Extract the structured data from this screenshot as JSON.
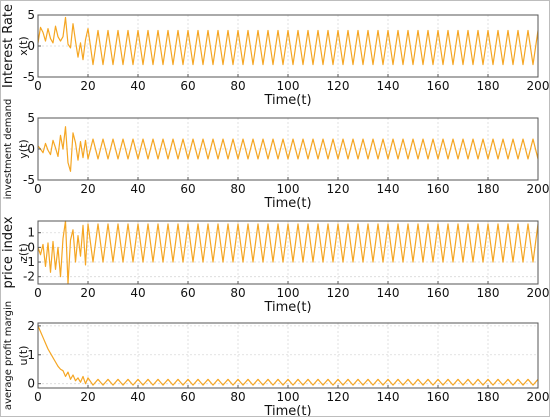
{
  "colors": {
    "series": "#F5A623",
    "axis": "#555555",
    "grid": "#d9d9d9",
    "text": "#111111"
  },
  "chart_data": [
    {
      "type": "line",
      "ylabel": "Interest Rate",
      "sublabel": "x(t)",
      "xlabel": "Time(t)",
      "xlim": [
        0,
        200
      ],
      "ylim": [
        -5,
        5
      ],
      "xticks": [
        "0",
        "20",
        "40",
        "60",
        "80",
        "100",
        "120",
        "140",
        "160",
        "180",
        "200"
      ],
      "yticks": [
        "-5",
        "0",
        "5"
      ],
      "grid": true,
      "series": [
        {
          "x": [
            0,
            1,
            2,
            3,
            4,
            5,
            6,
            7,
            8,
            9,
            10,
            11,
            12,
            13,
            14,
            15,
            16,
            17,
            18,
            19,
            20,
            22,
            24,
            26,
            28,
            30,
            32,
            34,
            36,
            38,
            40,
            42,
            44,
            46,
            48,
            50,
            52,
            54,
            56,
            58,
            60,
            62,
            64,
            66,
            68,
            70,
            72,
            74,
            76,
            78,
            80,
            82,
            84,
            86,
            88,
            90,
            92,
            94,
            96,
            98,
            100,
            102,
            104,
            106,
            108,
            110,
            112,
            114,
            116,
            118,
            120,
            122,
            124,
            126,
            128,
            130,
            132,
            134,
            136,
            138,
            140,
            142,
            144,
            146,
            148,
            150,
            152,
            154,
            156,
            158,
            160,
            162,
            164,
            166,
            168,
            170,
            172,
            174,
            176,
            178,
            180,
            182,
            184,
            186,
            188,
            190,
            192,
            194,
            196,
            198,
            200
          ],
          "values": [
            0.5,
            3.0,
            2.2,
            0.8,
            2.8,
            1.2,
            0.5,
            3.2,
            1.5,
            0.8,
            1.5,
            4.6,
            0.3,
            -0.3,
            3.6,
            0.8,
            -1.8,
            0.5,
            -2.2,
            1.0,
            2.8,
            -3.0,
            2.5,
            -3.0,
            2.5,
            -3.0,
            2.5,
            -3.0,
            2.5,
            -3.0,
            2.5,
            -3.0,
            2.5,
            -3.0,
            2.5,
            -3.0,
            2.5,
            -3.0,
            2.5,
            -3.0,
            2.5,
            -3.0,
            2.5,
            -3.0,
            2.5,
            -3.0,
            2.5,
            -3.0,
            2.5,
            -3.0,
            2.5,
            -3.0,
            2.5,
            -3.0,
            2.5,
            -3.0,
            2.5,
            -3.0,
            2.5,
            -3.0,
            2.5,
            -3.0,
            2.5,
            -3.0,
            2.5,
            -3.0,
            2.5,
            -3.0,
            2.5,
            -3.0,
            2.5,
            -3.0,
            2.5,
            -3.0,
            2.5,
            -3.0,
            2.5,
            -3.0,
            2.5,
            -3.0,
            2.5,
            -3.0,
            2.5,
            -3.0,
            2.5,
            -3.0,
            2.5,
            -3.0,
            2.5,
            -3.0,
            2.5,
            -3.0,
            2.5,
            -3.0,
            2.5,
            -3.0,
            2.5,
            -3.0,
            2.5,
            -3.0,
            2.5,
            -3.0,
            2.5,
            -3.0,
            2.5,
            -3.0,
            2.5,
            -3.0,
            2.5,
            -3.0,
            2.5
          ]
        }
      ]
    },
    {
      "type": "line",
      "ylabel": "investment demand",
      "sublabel": "y(t)",
      "xlabel": "Time(t)",
      "xlim": [
        0,
        200
      ],
      "ylim": [
        -5,
        5
      ],
      "xticks": [
        "0",
        "20",
        "40",
        "60",
        "80",
        "100",
        "120",
        "140",
        "160",
        "180",
        "200"
      ],
      "yticks": [
        "-5",
        "0",
        "5"
      ],
      "grid": true,
      "series": [
        {
          "x": [
            0,
            1,
            2,
            3,
            4,
            5,
            6,
            7,
            8,
            9,
            10,
            11,
            12,
            13,
            14,
            15,
            16,
            17,
            18,
            19,
            20,
            22,
            24,
            26,
            28,
            30,
            32,
            34,
            36,
            38,
            40,
            42,
            44,
            46,
            48,
            50,
            52,
            54,
            56,
            58,
            60,
            62,
            64,
            66,
            68,
            70,
            72,
            74,
            76,
            78,
            80,
            82,
            84,
            86,
            88,
            90,
            92,
            94,
            96,
            98,
            100,
            102,
            104,
            106,
            108,
            110,
            112,
            114,
            116,
            118,
            120,
            122,
            124,
            126,
            128,
            130,
            132,
            134,
            136,
            138,
            140,
            142,
            144,
            146,
            148,
            150,
            152,
            154,
            156,
            158,
            160,
            162,
            164,
            166,
            168,
            170,
            172,
            174,
            176,
            178,
            180,
            182,
            184,
            186,
            188,
            190,
            192,
            194,
            196,
            198,
            200
          ],
          "values": [
            0.5,
            0.0,
            -0.6,
            0.9,
            -0.2,
            -0.9,
            1.4,
            0.2,
            -1.2,
            2.2,
            0.0,
            3.6,
            -2.2,
            -3.6,
            2.6,
            1.0,
            -1.8,
            1.2,
            -1.4,
            1.4,
            -1.6,
            1.6,
            -1.6,
            1.6,
            -1.6,
            1.6,
            -1.6,
            1.6,
            -1.6,
            1.6,
            -1.6,
            1.6,
            -1.6,
            1.6,
            -1.6,
            1.6,
            -1.6,
            1.6,
            -1.6,
            1.6,
            -1.6,
            1.6,
            -1.6,
            1.6,
            -1.6,
            1.6,
            -1.6,
            1.6,
            -1.6,
            1.6,
            -1.6,
            1.6,
            -1.6,
            1.6,
            -1.6,
            1.6,
            -1.6,
            1.6,
            -1.6,
            1.6,
            -1.6,
            1.6,
            -1.6,
            1.6,
            -1.6,
            1.6,
            -1.6,
            1.6,
            -1.6,
            1.6,
            -1.6,
            1.6,
            -1.6,
            1.6,
            -1.6,
            1.6,
            -1.6,
            1.6,
            -1.6,
            1.6,
            -1.6,
            1.6,
            -1.6,
            1.6,
            -1.6,
            1.6,
            -1.6,
            1.6,
            -1.6,
            1.6,
            -1.6,
            1.6,
            -1.6,
            1.6,
            -1.6,
            1.6,
            -1.6,
            1.6,
            -1.6,
            1.6,
            -1.6,
            1.6,
            -1.6,
            1.6,
            -1.6,
            1.6,
            -1.6,
            1.6,
            -1.6,
            1.6,
            -1.6
          ]
        }
      ]
    },
    {
      "type": "line",
      "ylabel": "price index",
      "sublabel": "z(t)",
      "xlabel": "Time(t)",
      "xlim": [
        0,
        200
      ],
      "ylim": [
        -2.5,
        1.8
      ],
      "xticks": [
        "0",
        "20",
        "40",
        "60",
        "80",
        "100",
        "120",
        "140",
        "160",
        "180",
        "200"
      ],
      "yticks": [
        "-2",
        "-1",
        "0",
        "1"
      ],
      "grid": true,
      "series": [
        {
          "x": [
            0,
            1,
            2,
            3,
            4,
            5,
            6,
            7,
            8,
            9,
            10,
            11,
            12,
            13,
            14,
            15,
            16,
            17,
            18,
            19,
            20,
            22,
            24,
            26,
            28,
            30,
            32,
            34,
            36,
            38,
            40,
            42,
            44,
            46,
            48,
            50,
            52,
            54,
            56,
            58,
            60,
            62,
            64,
            66,
            68,
            70,
            72,
            74,
            76,
            78,
            80,
            82,
            84,
            86,
            88,
            90,
            92,
            94,
            96,
            98,
            100,
            102,
            104,
            106,
            108,
            110,
            112,
            114,
            116,
            118,
            120,
            122,
            124,
            126,
            128,
            130,
            132,
            134,
            136,
            138,
            140,
            142,
            144,
            146,
            148,
            150,
            152,
            154,
            156,
            158,
            160,
            162,
            164,
            166,
            168,
            170,
            172,
            174,
            176,
            178,
            180,
            182,
            184,
            186,
            188,
            190,
            192,
            194,
            196,
            198,
            200
          ],
          "values": [
            0.0,
            -0.5,
            0.2,
            -1.3,
            0.3,
            -1.7,
            0.4,
            -1.5,
            0.0,
            -2.0,
            0.6,
            1.8,
            -2.5,
            0.5,
            1.2,
            -1.0,
            0.8,
            -0.6,
            1.5,
            -1.2,
            1.6,
            -1.0,
            1.6,
            -1.0,
            1.6,
            -1.0,
            1.6,
            -1.0,
            1.6,
            -1.0,
            1.6,
            -1.0,
            1.6,
            -1.0,
            1.6,
            -1.0,
            1.6,
            -1.0,
            1.6,
            -1.0,
            1.6,
            -1.0,
            1.6,
            -1.0,
            1.6,
            -1.0,
            1.6,
            -1.0,
            1.6,
            -1.0,
            1.6,
            -1.0,
            1.6,
            -1.0,
            1.6,
            -1.0,
            1.6,
            -1.0,
            1.6,
            -1.0,
            1.6,
            -1.0,
            1.6,
            -1.0,
            1.6,
            -1.0,
            1.6,
            -1.0,
            1.6,
            -1.0,
            1.6,
            -1.0,
            1.6,
            -1.0,
            1.6,
            -1.0,
            1.6,
            -1.0,
            1.6,
            -1.0,
            1.6,
            -1.0,
            1.6,
            -1.0,
            1.6,
            -1.0,
            1.6,
            -1.0,
            1.6,
            -1.0,
            1.6,
            -1.0,
            1.6,
            -1.0,
            1.6,
            -1.0,
            1.6,
            -1.0,
            1.6,
            -1.0,
            1.6,
            -1.0,
            1.6,
            -1.0,
            1.6,
            -1.0,
            1.6,
            -1.0,
            1.6,
            -1.0,
            1.6
          ]
        }
      ]
    },
    {
      "type": "line",
      "ylabel": "average profit margin",
      "sublabel": "u(t)",
      "xlabel": "Time(t)",
      "xlim": [
        0,
        200
      ],
      "ylim": [
        -0.15,
        2.1
      ],
      "xticks": [
        "0",
        "20",
        "40",
        "60",
        "80",
        "100",
        "120",
        "140",
        "160",
        "180",
        "200"
      ],
      "yticks": [
        "0",
        "1",
        "2"
      ],
      "grid": true,
      "series": [
        {
          "x": [
            0,
            1,
            2,
            3,
            4,
            5,
            6,
            7,
            8,
            9,
            10,
            11,
            12,
            13,
            14,
            15,
            16,
            17,
            18,
            19,
            20,
            22,
            24,
            26,
            28,
            30,
            32,
            34,
            36,
            38,
            40,
            42,
            44,
            46,
            48,
            50,
            52,
            54,
            56,
            58,
            60,
            62,
            64,
            66,
            68,
            70,
            72,
            74,
            76,
            78,
            80,
            82,
            84,
            86,
            88,
            90,
            92,
            94,
            96,
            98,
            100,
            102,
            104,
            106,
            108,
            110,
            112,
            114,
            116,
            118,
            120,
            122,
            124,
            126,
            128,
            130,
            132,
            134,
            136,
            138,
            140,
            142,
            144,
            146,
            148,
            150,
            152,
            154,
            156,
            158,
            160,
            162,
            164,
            166,
            168,
            170,
            172,
            174,
            176,
            178,
            180,
            182,
            184,
            186,
            188,
            190,
            192,
            194,
            196,
            198,
            200
          ],
          "values": [
            2.0,
            1.8,
            1.6,
            1.4,
            1.2,
            1.05,
            0.9,
            0.75,
            0.6,
            0.5,
            0.45,
            0.25,
            0.4,
            0.15,
            0.3,
            0.1,
            0.2,
            0.05,
            0.25,
            0.0,
            0.2,
            -0.05,
            0.15,
            -0.05,
            0.15,
            -0.05,
            0.15,
            -0.05,
            0.15,
            -0.05,
            0.15,
            -0.05,
            0.15,
            -0.05,
            0.15,
            -0.05,
            0.15,
            -0.05,
            0.15,
            -0.05,
            0.15,
            -0.05,
            0.15,
            -0.05,
            0.15,
            -0.05,
            0.15,
            -0.05,
            0.15,
            -0.05,
            0.15,
            -0.05,
            0.15,
            -0.05,
            0.15,
            -0.05,
            0.15,
            -0.05,
            0.15,
            -0.05,
            0.15,
            -0.05,
            0.15,
            -0.05,
            0.15,
            -0.05,
            0.15,
            -0.05,
            0.15,
            -0.05,
            0.15,
            -0.05,
            0.15,
            -0.05,
            0.15,
            -0.05,
            0.15,
            -0.05,
            0.15,
            -0.05,
            0.15,
            -0.05,
            0.15,
            -0.05,
            0.15,
            -0.05,
            0.15,
            -0.05,
            0.15,
            -0.05,
            0.15,
            -0.05,
            0.15,
            -0.05,
            0.15,
            -0.05,
            0.15,
            -0.05,
            0.15,
            -0.05,
            0.15,
            -0.05,
            0.15,
            -0.05,
            0.15,
            -0.05,
            0.15,
            -0.05,
            0.15,
            -0.05,
            0.15
          ]
        }
      ]
    }
  ]
}
